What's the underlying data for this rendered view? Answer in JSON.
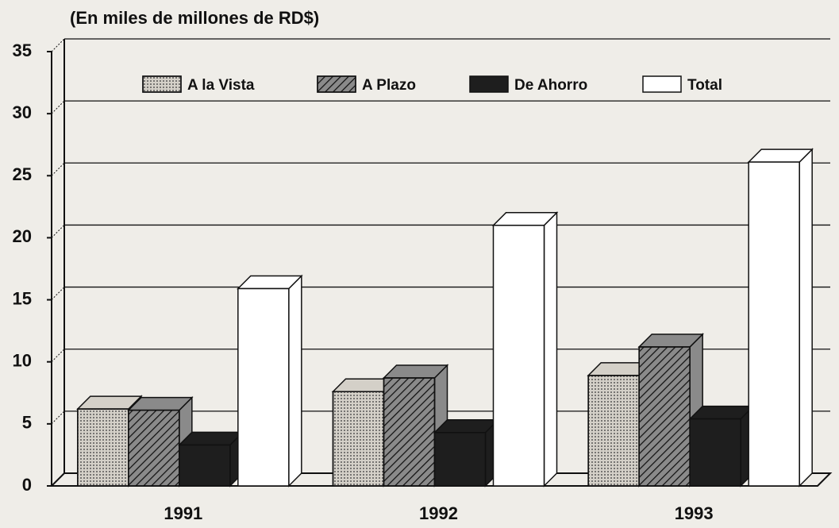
{
  "chart_data": {
    "type": "bar3d",
    "title": "(En miles de millones de RD$)",
    "categories": [
      "1991",
      "1992",
      "1993"
    ],
    "series": [
      {
        "name": "A la Vista",
        "color": "#d4d0c8",
        "values": [
          6.2,
          7.6,
          8.9
        ]
      },
      {
        "name": "A Plazo",
        "color": "#8a8a8a",
        "values": [
          6.1,
          8.7,
          11.2
        ]
      },
      {
        "name": "De Ahorro",
        "color": "#1e1e1e",
        "values": [
          3.3,
          4.3,
          5.4
        ]
      },
      {
        "name": "Total",
        "color": "#ffffff",
        "values": [
          15.9,
          21.0,
          26.1
        ]
      }
    ],
    "ylim": [
      0,
      35
    ],
    "yticks": [
      0,
      5,
      10,
      15,
      20,
      25,
      30,
      35
    ],
    "grid": true,
    "legend": "top"
  }
}
